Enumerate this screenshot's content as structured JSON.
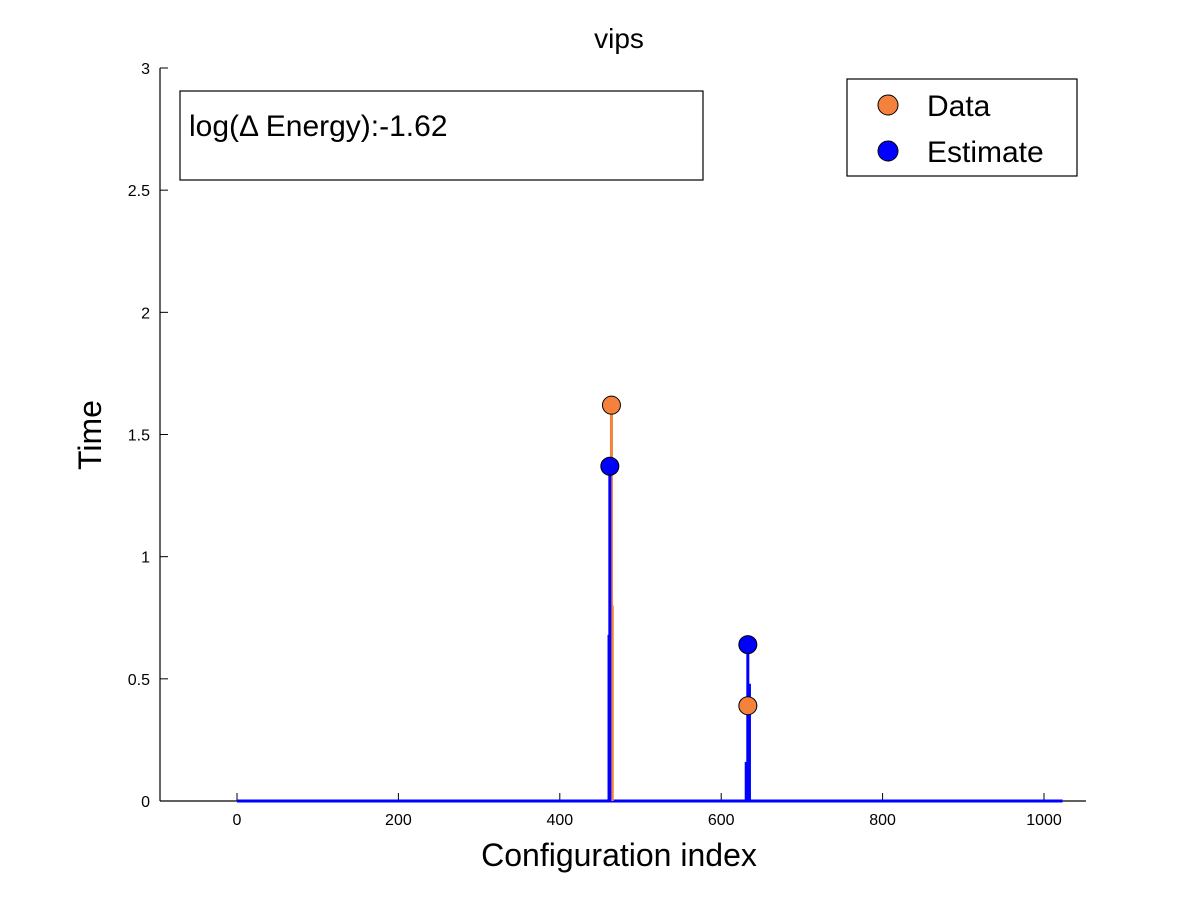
{
  "chart_data": {
    "type": "stem",
    "title": "vips",
    "xlabel": "Configuration index",
    "ylabel": "Time",
    "xlim": [
      -90,
      1050
    ],
    "ylim": [
      0,
      3
    ],
    "xticks": [
      0,
      200,
      400,
      600,
      800,
      1000
    ],
    "yticks": [
      0,
      0.5,
      1,
      1.5,
      2,
      2.5,
      3
    ],
    "xtick_labels": [
      "0",
      "200",
      "400",
      "600",
      "800",
      "1000"
    ],
    "ytick_labels": [
      "0",
      "0.5",
      "1",
      "1.5",
      "2",
      "2.5",
      "3"
    ],
    "x_range": [
      0,
      1023
    ],
    "series": [
      {
        "name": "Data",
        "color": "#f4823c",
        "baseline": 0,
        "stems": [
          {
            "x": 464,
            "y": 1.62,
            "marker": true
          },
          {
            "x": 465,
            "y": 0.8,
            "marker": false
          },
          {
            "x": 633,
            "y": 0.39,
            "marker": true
          }
        ]
      },
      {
        "name": "Estimate",
        "color": "#0000ff",
        "baseline": 0,
        "stems": [
          {
            "x": 462,
            "y": 1.37,
            "marker": true
          },
          {
            "x": 461,
            "y": 0.68,
            "marker": false
          },
          {
            "x": 633,
            "y": 0.64,
            "marker": true
          },
          {
            "x": 631,
            "y": 0.16,
            "marker": false
          },
          {
            "x": 635,
            "y": 0.48,
            "marker": false
          }
        ]
      }
    ],
    "annotation": "log(Δ Energy):-1.62",
    "legend": {
      "position": "top-right",
      "entries": [
        "Data",
        "Estimate"
      ]
    },
    "grid": false
  }
}
